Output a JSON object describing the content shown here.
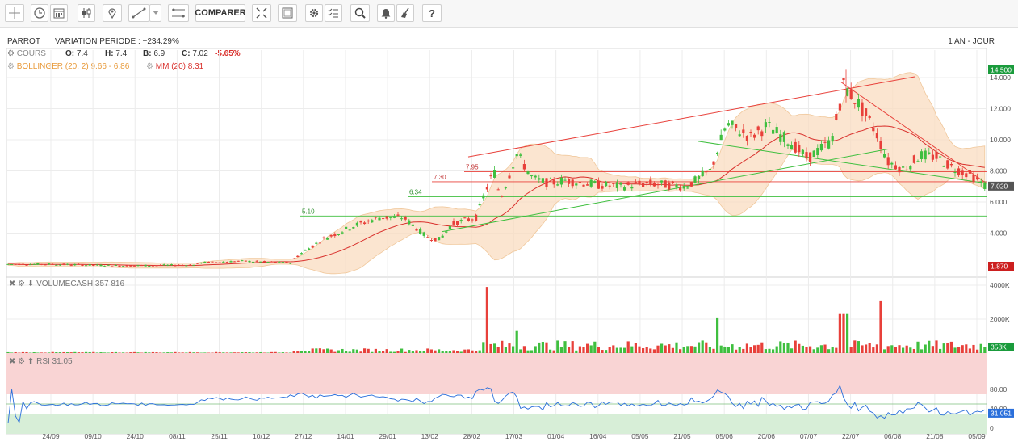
{
  "toolbar": {
    "compare_label": "COMPARER",
    "icons": [
      "crosshair-icon",
      "clock-icon",
      "calendar-icon",
      "candles-icon",
      "pin-icon",
      "line-draw-icon",
      "dropdown-icon",
      "fibonacci-icon",
      "compare-button",
      "fullscreen-icon",
      "frame-icon",
      "gear-icon",
      "checklist-icon",
      "search-icon",
      "bell-icon",
      "broom-icon",
      "help-icon"
    ]
  },
  "header": {
    "name": "PARROT",
    "variation": "VARIATION PERIODE : +234.29%",
    "period": "1 AN - JOUR",
    "cours_label": "COURS",
    "o_label": "O:",
    "o": "7.4",
    "h_label": "H:",
    "h": "7.4",
    "b_label": "B:",
    "b": "6.9",
    "c_label": "C:",
    "c": "7.02",
    "change": "-5.65%",
    "bollinger": "BOLLINGER (20, 2) 9.66 - 6.86",
    "mm": "MM (20) 8.31"
  },
  "volume_panel": {
    "label": "VOLUMECASH 357 816"
  },
  "rsi_panel": {
    "label": "RSI 31.05"
  },
  "colors": {
    "up": "#3fbf3f",
    "down": "#e8403a",
    "band": "#f9dcc0",
    "rsi_line": "#2a6fdb",
    "mm": "#d9302c"
  },
  "chart_data": [
    {
      "type": "candlestick",
      "title": "PARROT",
      "ylim": [
        0,
        15
      ],
      "yticks": [
        "14.000",
        "12.000",
        "10.000",
        "8.000",
        "6.000",
        "4.000"
      ],
      "xticks": [
        "24/09",
        "09/10",
        "24/10",
        "08/11",
        "25/11",
        "10/12",
        "27/12",
        "14/01",
        "29/01",
        "13/02",
        "28/02",
        "17/03",
        "01/04",
        "16/04",
        "05/05",
        "21/05",
        "05/06",
        "20/06",
        "07/07",
        "22/07",
        "06/08",
        "21/08",
        "05/09"
      ],
      "price_badges": [
        {
          "text": "14.500",
          "value": 14.5,
          "color": "#1a9b3c"
        },
        {
          "text": "7.020",
          "value": 7.02,
          "color": "#555555"
        },
        {
          "text": "1.870",
          "value": 1.87,
          "color": "#cc1f1f"
        }
      ],
      "levels": [
        {
          "label": "7.95",
          "value": 7.95,
          "color": "#e8403a"
        },
        {
          "label": "7.30",
          "value": 7.3,
          "color": "#e8403a"
        },
        {
          "label": "6.34",
          "value": 6.34,
          "color": "#3fbf3f"
        },
        {
          "label": "5.10",
          "value": 5.1,
          "color": "#3fbf3f"
        }
      ]
    },
    {
      "type": "bar",
      "title": "VOLUMECASH",
      "ylim": [
        0,
        4000000
      ],
      "yticks": [
        "4000K",
        "2000K"
      ],
      "last_badge": "358K"
    },
    {
      "type": "line",
      "title": "RSI",
      "ylim": [
        0,
        100
      ],
      "yticks": [
        "80.00",
        "40.00",
        "0"
      ],
      "last_badge": "31.051",
      "zones": [
        70,
        30
      ]
    }
  ]
}
